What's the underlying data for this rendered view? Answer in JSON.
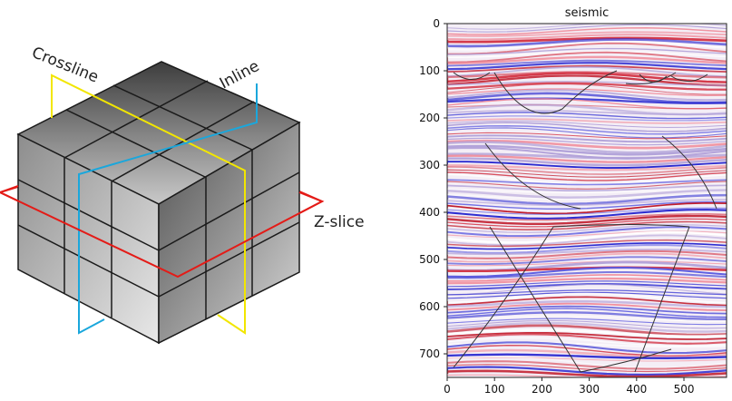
{
  "cube_diagram": {
    "labels": {
      "crossline": "Crossline",
      "inline": "Inline",
      "zslice": "Z-slice"
    },
    "colors": {
      "crossline": "#f2e600",
      "inline": "#1aa7dc",
      "zslice": "#e41b17"
    }
  },
  "seismic_plot": {
    "title": "seismic",
    "y_ticks": [
      "0",
      "100",
      "200",
      "300",
      "400",
      "500",
      "600",
      "700"
    ],
    "x_ticks": [
      "0",
      "100",
      "200",
      "300",
      "400",
      "500"
    ],
    "ylim": [
      0,
      750
    ],
    "xlim": [
      0,
      590
    ]
  }
}
